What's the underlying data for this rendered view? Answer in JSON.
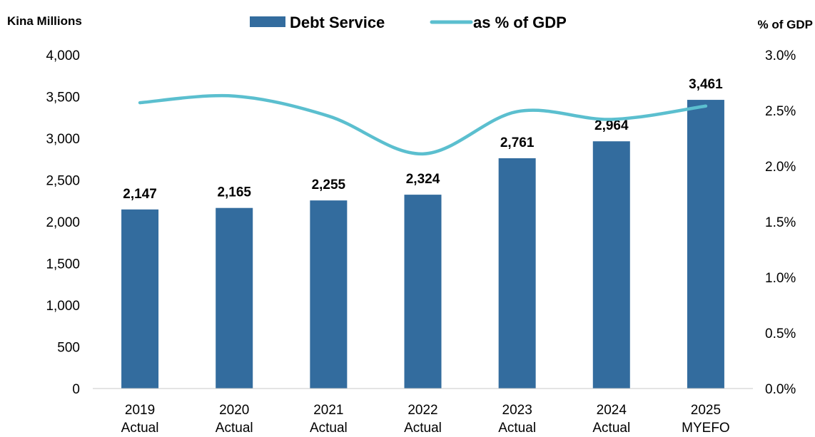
{
  "chart_data": {
    "type": "bar",
    "categories": [
      [
        "2019",
        "Actual"
      ],
      [
        "2020",
        "Actual"
      ],
      [
        "2021",
        "Actual"
      ],
      [
        "2022",
        "Actual"
      ],
      [
        "2023",
        "Actual"
      ],
      [
        "2024",
        "Actual"
      ],
      [
        "2025",
        "MYEFO"
      ]
    ],
    "series": [
      {
        "name": "Debt Service",
        "type": "bar",
        "axis": "left",
        "color": "#336C9E",
        "values": [
          2147,
          2165,
          2255,
          2324,
          2761,
          2964,
          3461
        ],
        "labels": [
          "2,147",
          "2,165",
          "2,255",
          "2,324",
          "2,761",
          "2,964",
          "3,461"
        ]
      },
      {
        "name": "as % of GDP",
        "type": "line",
        "axis": "right",
        "color": "#5BBFCF",
        "smooth": true,
        "values": [
          2.57,
          2.63,
          2.45,
          2.11,
          2.49,
          2.42,
          2.54
        ]
      }
    ],
    "ylabel": "Kina Millions",
    "y2label": "% of GDP",
    "ylim": [
      0,
      4000
    ],
    "y2lim": [
      0,
      3.0
    ],
    "yticks": [
      "0",
      "500",
      "1,000",
      "1,500",
      "2,000",
      "2,500",
      "3,000",
      "3,500",
      "4,000"
    ],
    "y2ticks": [
      "0.0%",
      "0.5%",
      "1.0%",
      "1.5%",
      "2.0%",
      "2.5%",
      "3.0%"
    ],
    "grid": false,
    "legend": "top-center"
  }
}
